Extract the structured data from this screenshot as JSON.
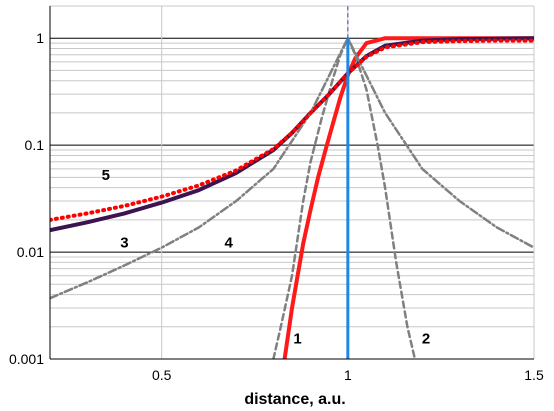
{
  "chart_data": {
    "type": "line",
    "xlabel": "distance, a.u.",
    "ylabel": "",
    "title": "",
    "xlim": [
      0.2,
      1.5
    ],
    "ylim": [
      0.001,
      2
    ],
    "y_scale": "log",
    "x_ticks": [
      {
        "value": 0.5,
        "label": "0.5"
      },
      {
        "value": 1.0,
        "label": "1"
      },
      {
        "value": 1.5,
        "label": "1.5"
      }
    ],
    "y_ticks": [
      {
        "value": 1,
        "label": "1"
      },
      {
        "value": 0.1,
        "label": "0.1"
      },
      {
        "value": 0.01,
        "label": "0.01"
      },
      {
        "value": 0.001,
        "label": "0.001"
      }
    ],
    "grid": true,
    "vertical_markers": [
      {
        "x": 1.0,
        "color": "#1e88e5",
        "from_y": 0.001,
        "to_y": 1.0
      },
      {
        "x": 1.0,
        "color": "#4b3ca0",
        "style": "dashed",
        "from_y": 1.0,
        "to_y": 2.0
      }
    ],
    "series": [
      {
        "id": "1",
        "label": "1",
        "color": "#ff1a1a",
        "style": "solid",
        "x": [
          0.83,
          0.85,
          0.88,
          0.9,
          0.92,
          0.94,
          0.96,
          0.98,
          1.0,
          1.02,
          1.05,
          1.1,
          1.2,
          1.3,
          1.4,
          1.5
        ],
        "y": [
          0.001,
          0.003,
          0.012,
          0.025,
          0.05,
          0.09,
          0.16,
          0.28,
          0.45,
          0.65,
          0.9,
          1.0,
          1.0,
          1.0,
          1.0,
          1.0
        ]
      },
      {
        "id": "2",
        "label": "2",
        "color": "#808080",
        "style": "dashed",
        "x": [
          0.8,
          0.82,
          0.85,
          0.88,
          0.9,
          0.93,
          0.96,
          0.98,
          1.0,
          1.02,
          1.05,
          1.08,
          1.1,
          1.13,
          1.16,
          1.18
        ],
        "y": [
          0.001,
          0.002,
          0.006,
          0.03,
          0.07,
          0.18,
          0.42,
          0.7,
          1.0,
          0.7,
          0.33,
          0.1,
          0.04,
          0.008,
          0.002,
          0.001
        ]
      },
      {
        "id": "3",
        "label": "3",
        "color": "#3b1450",
        "style": "solid",
        "x": [
          0.2,
          0.3,
          0.4,
          0.5,
          0.6,
          0.7,
          0.8,
          0.85,
          0.9,
          0.95,
          1.0,
          1.05,
          1.1,
          1.2,
          1.3,
          1.4,
          1.5
        ],
        "y": [
          0.016,
          0.019,
          0.023,
          0.029,
          0.038,
          0.055,
          0.09,
          0.13,
          0.2,
          0.3,
          0.47,
          0.68,
          0.85,
          0.95,
          0.98,
          0.99,
          1.0
        ]
      },
      {
        "id": "4",
        "label": "4",
        "color": "#808080",
        "style": "dashdot",
        "x": [
          0.2,
          0.3,
          0.4,
          0.5,
          0.6,
          0.7,
          0.8,
          0.9,
          1.0,
          1.1,
          1.2,
          1.3,
          1.4,
          1.5
        ],
        "y": [
          0.0037,
          0.0052,
          0.0075,
          0.011,
          0.017,
          0.03,
          0.06,
          0.2,
          1.0,
          0.2,
          0.06,
          0.03,
          0.017,
          0.011
        ]
      },
      {
        "id": "5",
        "label": "5",
        "color": "#ff0000",
        "style": "dotted",
        "x": [
          0.2,
          0.3,
          0.4,
          0.5,
          0.6,
          0.7,
          0.8,
          0.85,
          0.9,
          0.95,
          1.0,
          1.05,
          1.1,
          1.2,
          1.3,
          1.4,
          1.5
        ],
        "y": [
          0.02,
          0.023,
          0.027,
          0.033,
          0.042,
          0.058,
          0.092,
          0.13,
          0.2,
          0.3,
          0.47,
          0.67,
          0.82,
          0.92,
          0.94,
          0.95,
          0.95
        ]
      }
    ],
    "curve_labels": [
      {
        "text": "1",
        "x": 0.865,
        "y": 0.0014
      },
      {
        "text": "2",
        "x": 1.21,
        "y": 0.0014
      },
      {
        "text": "3",
        "x": 0.4,
        "y": 0.011
      },
      {
        "text": "4",
        "x": 0.68,
        "y": 0.011
      },
      {
        "text": "5",
        "x": 0.35,
        "y": 0.047
      }
    ]
  }
}
